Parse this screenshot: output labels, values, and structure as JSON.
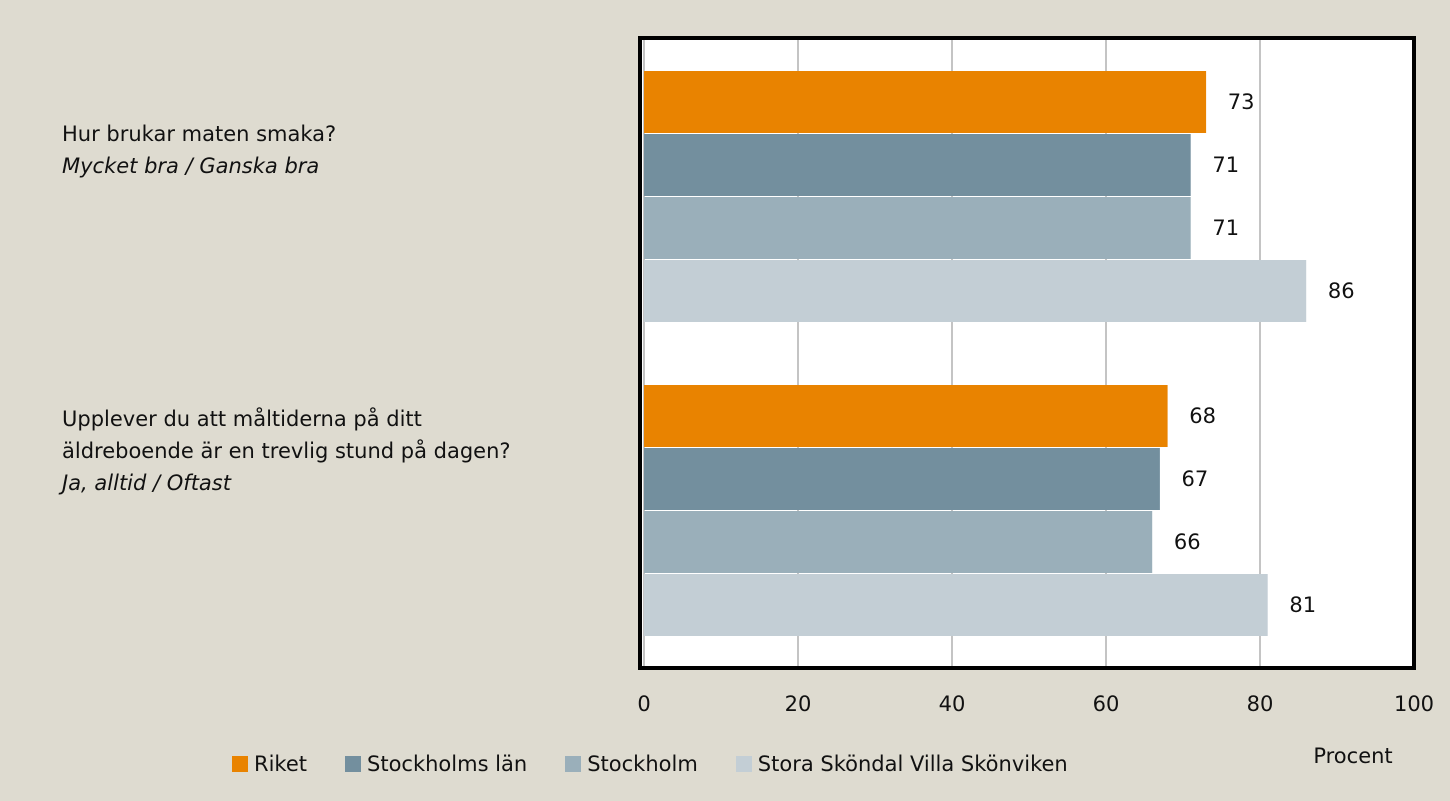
{
  "chart_data": {
    "type": "bar",
    "orientation": "horizontal",
    "categories": [
      "Hur brukar maten smaka?",
      "Upplever du att måltiderna på ditt äldreboende är en trevlig stund på dagen?"
    ],
    "category_answers": [
      "Mycket bra / Ganska bra",
      "Ja, alltid / Oftast"
    ],
    "series": [
      {
        "name": "Riket",
        "color": "#e98300",
        "values": [
          73,
          68
        ]
      },
      {
        "name": "Stockholms län",
        "color": "#738f9e",
        "values": [
          71,
          67
        ]
      },
      {
        "name": "Stockholm",
        "color": "#9aafba",
        "values": [
          71,
          66
        ]
      },
      {
        "name": "Stora Sköndal Villa Skönviken",
        "color": "#c3ced5",
        "values": [
          86,
          81
        ]
      }
    ],
    "xlabel": "Procent",
    "xlim": [
      0,
      100
    ],
    "xticks": [
      0,
      20,
      40,
      60,
      80,
      100
    ],
    "grid": true,
    "legend": "bottom"
  }
}
